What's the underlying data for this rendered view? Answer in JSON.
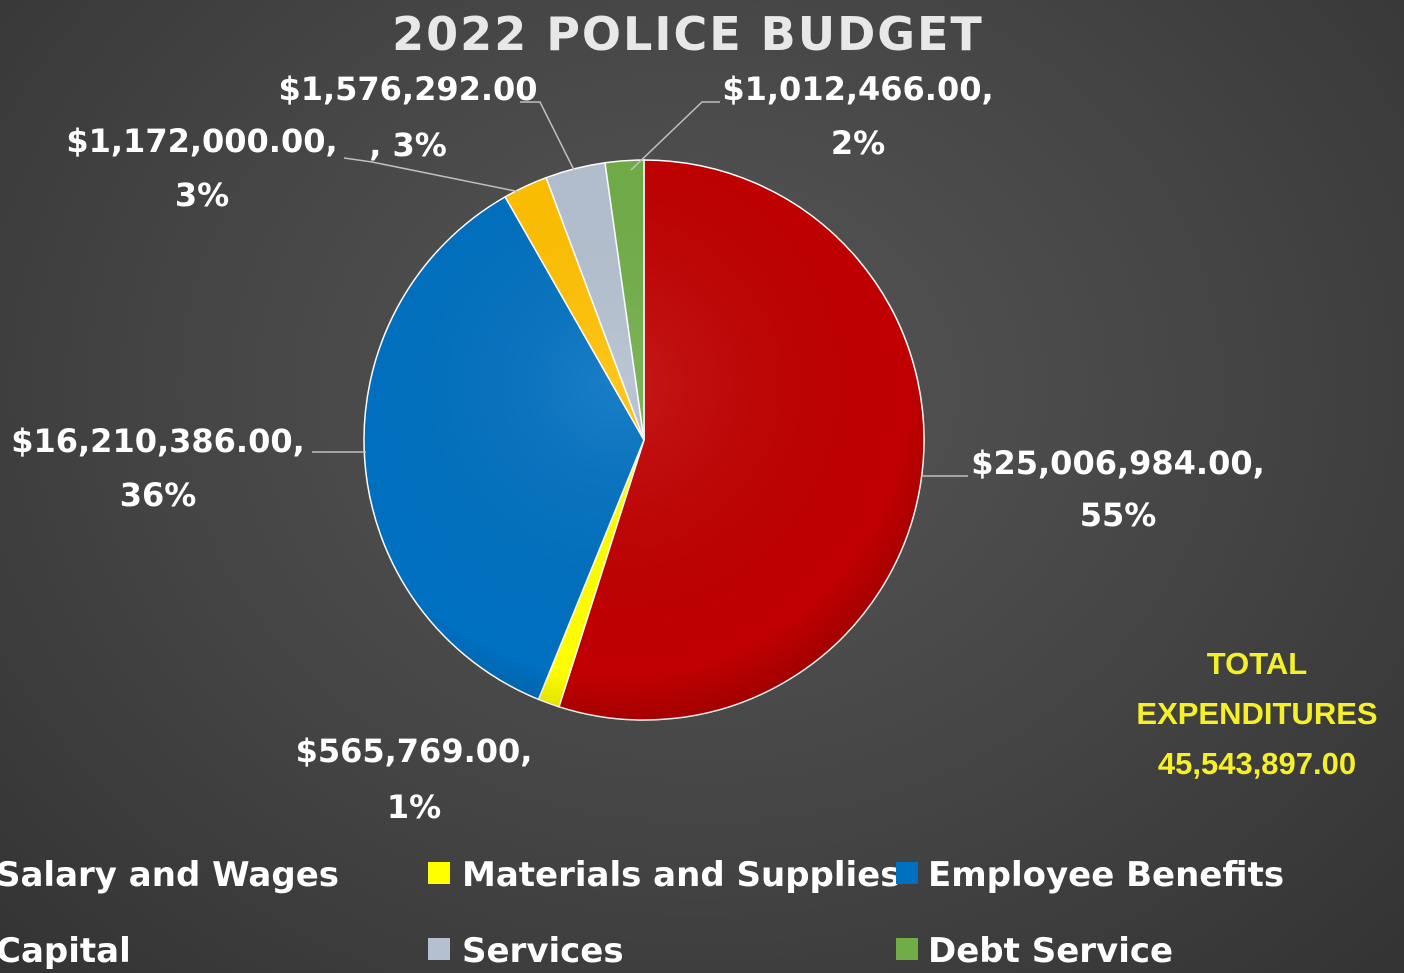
{
  "chart_data": {
    "type": "pie",
    "title": "2022 POLICE BUDGET",
    "slices": [
      {
        "name": "Salary and Wages",
        "value": 25006984.0,
        "label": "$25,006,984.00,",
        "pct_label": "55%",
        "color": "#c00000"
      },
      {
        "name": "Materials and Supplies",
        "value": 565769.0,
        "label": "$565,769.00,",
        "pct_label": "1%",
        "color": "#ffff00"
      },
      {
        "name": "Employee Benefits",
        "value": 16210386.0,
        "label": "$16,210,386.00,",
        "pct_label": "36%",
        "color": "#0070c0"
      },
      {
        "name": "Capital",
        "value": 1172000.0,
        "label": "$1,172,000.00,",
        "pct_label": "3%",
        "color": "#ffc000"
      },
      {
        "name": "Services",
        "value": 1576292.0,
        "label": "$1,576,292.00",
        "pct_label": ", 3%",
        "color": "#b4c0d0"
      },
      {
        "name": "Debt Service",
        "value": 1012466.0,
        "label": "$1,012,466.00,",
        "pct_label": "2%",
        "color": "#70ad47"
      }
    ],
    "legend_position": "bottom",
    "annotation": {
      "line1": "TOTAL",
      "line2": "EXPENDITURES",
      "line3": "45,543,897.00",
      "color": "#f5f02a"
    }
  }
}
